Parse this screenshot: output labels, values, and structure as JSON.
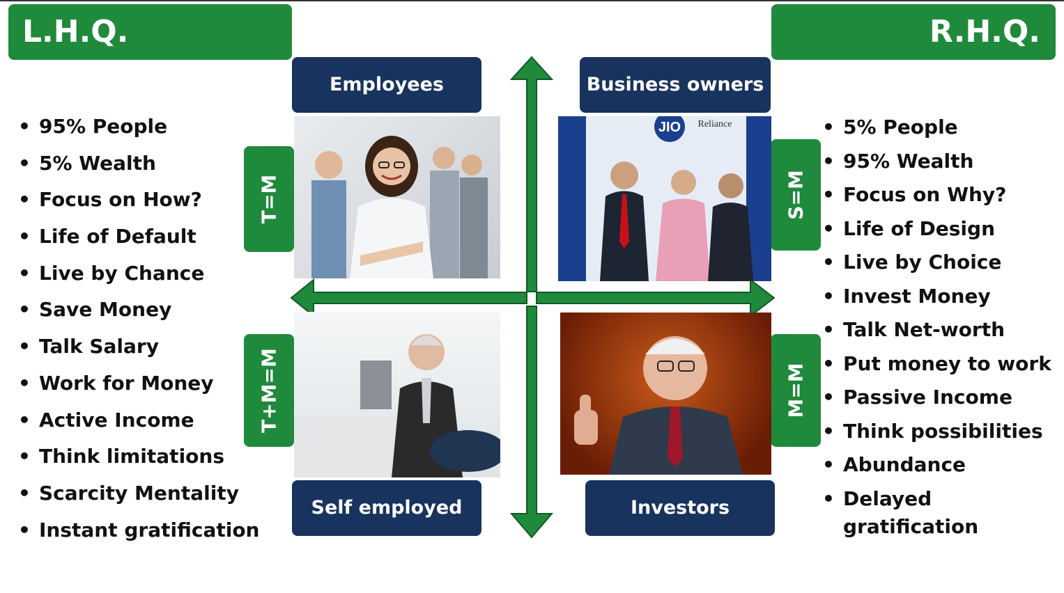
{
  "left_header": "L.H.Q.",
  "right_header": "R.H.Q.",
  "quadrants": {
    "top_left": "Employees",
    "top_right": "Business owners",
    "bottom_left": "Self employed",
    "bottom_right": "Investors"
  },
  "equations": {
    "employees": "T=M",
    "business_owners": "S=M",
    "self_employed": "T+M=M",
    "investors": "M=M"
  },
  "left_list": [
    "95% People",
    "5% Wealth",
    "Focus on How?",
    "Life of Default",
    "Live by Chance",
    "Save Money",
    "Talk Salary",
    "Work for Money",
    "Active Income",
    "Think limitations",
    "Scarcity Mentality",
    "Instant gratification"
  ],
  "right_list": [
    "5% People",
    "95% Wealth",
    "Focus on Why?",
    "Life of Design",
    "Live by Choice",
    "Invest Money",
    "Talk Net-worth",
    "Put money to work",
    "Passive Income",
    "Think possibilities",
    "Abundance",
    "Delayed gratification"
  ],
  "photo_logo_text": [
    "Reliance",
    "JIO"
  ],
  "colors": {
    "green": "#1f8a3b",
    "navy": "#17335e"
  }
}
